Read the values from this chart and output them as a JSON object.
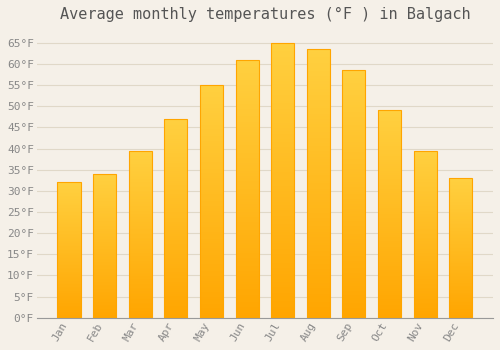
{
  "title": "Average monthly temperatures (°F ) in Balgach",
  "months": [
    "Jan",
    "Feb",
    "Mar",
    "Apr",
    "May",
    "Jun",
    "Jul",
    "Aug",
    "Sep",
    "Oct",
    "Nov",
    "Dec"
  ],
  "values": [
    32,
    34,
    39.5,
    47,
    55,
    61,
    65,
    63.5,
    58.5,
    49,
    39.5,
    33
  ],
  "bar_color_top": "#FFD040",
  "bar_color_bottom": "#FFA500",
  "background_color": "#F5F0E8",
  "grid_color": "#E0D8C8",
  "text_color": "#888888",
  "title_color": "#555555",
  "axis_color": "#999999",
  "ylim": [
    0,
    68
  ],
  "yticks": [
    0,
    5,
    10,
    15,
    20,
    25,
    30,
    35,
    40,
    45,
    50,
    55,
    60,
    65
  ],
  "ytick_labels": [
    "0°F",
    "5°F",
    "10°F",
    "15°F",
    "20°F",
    "25°F",
    "30°F",
    "35°F",
    "40°F",
    "45°F",
    "50°F",
    "55°F",
    "60°F",
    "65°F"
  ],
  "title_fontsize": 11,
  "tick_fontsize": 8,
  "font_family": "monospace"
}
